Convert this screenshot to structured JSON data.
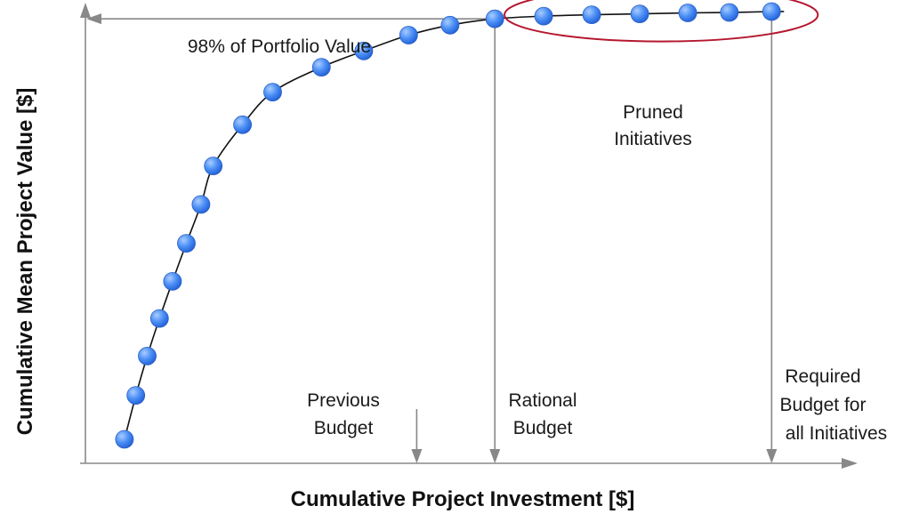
{
  "chart_data": {
    "type": "scatter",
    "title": "",
    "xlabel": "Cumulative Project Investment [$]",
    "ylabel": "Cumulative Mean Project Value [$]",
    "xlim": [
      0,
      100
    ],
    "ylim": [
      0,
      100
    ],
    "grid": false,
    "point_color": "#3d82f2",
    "curve_color": "#111111",
    "axis_color": "#888888",
    "highlight_color": "#b5172f",
    "points": [
      {
        "x": 4.8,
        "y": 5.3
      },
      {
        "x": 6.2,
        "y": 15.0
      },
      {
        "x": 7.6,
        "y": 23.7
      },
      {
        "x": 9.1,
        "y": 32.0
      },
      {
        "x": 10.7,
        "y": 40.2
      },
      {
        "x": 12.4,
        "y": 48.6
      },
      {
        "x": 14.2,
        "y": 57.2
      },
      {
        "x": 15.7,
        "y": 65.7
      },
      {
        "x": 19.3,
        "y": 74.8
      },
      {
        "x": 23.0,
        "y": 82.0
      },
      {
        "x": 29.0,
        "y": 87.5
      },
      {
        "x": 34.2,
        "y": 91.1
      },
      {
        "x": 39.7,
        "y": 94.6
      },
      {
        "x": 44.8,
        "y": 96.8
      },
      {
        "x": 50.3,
        "y": 98.2
      },
      {
        "x": 56.3,
        "y": 98.8
      },
      {
        "x": 62.2,
        "y": 99.1
      },
      {
        "x": 68.1,
        "y": 99.3
      },
      {
        "x": 74.0,
        "y": 99.5
      },
      {
        "x": 79.1,
        "y": 99.6
      },
      {
        "x": 84.3,
        "y": 99.8
      }
    ],
    "annotations": {
      "portfolio_value": "98% of Portfolio Value",
      "pruned_line1": "Pruned",
      "pruned_line2": "Initiatives",
      "previous_line1": "Previous",
      "previous_line2": "Budget",
      "rational_line1": "Rational",
      "rational_line2": "Budget",
      "required_line1": "Required",
      "required_line2": "Budget for",
      "required_line3": "all Initiatives"
    },
    "markers": {
      "previous_budget_x": 40.7,
      "rational_budget_x": 50.3,
      "required_budget_x": 84.3,
      "portfolio_value_y": 98.2
    }
  }
}
